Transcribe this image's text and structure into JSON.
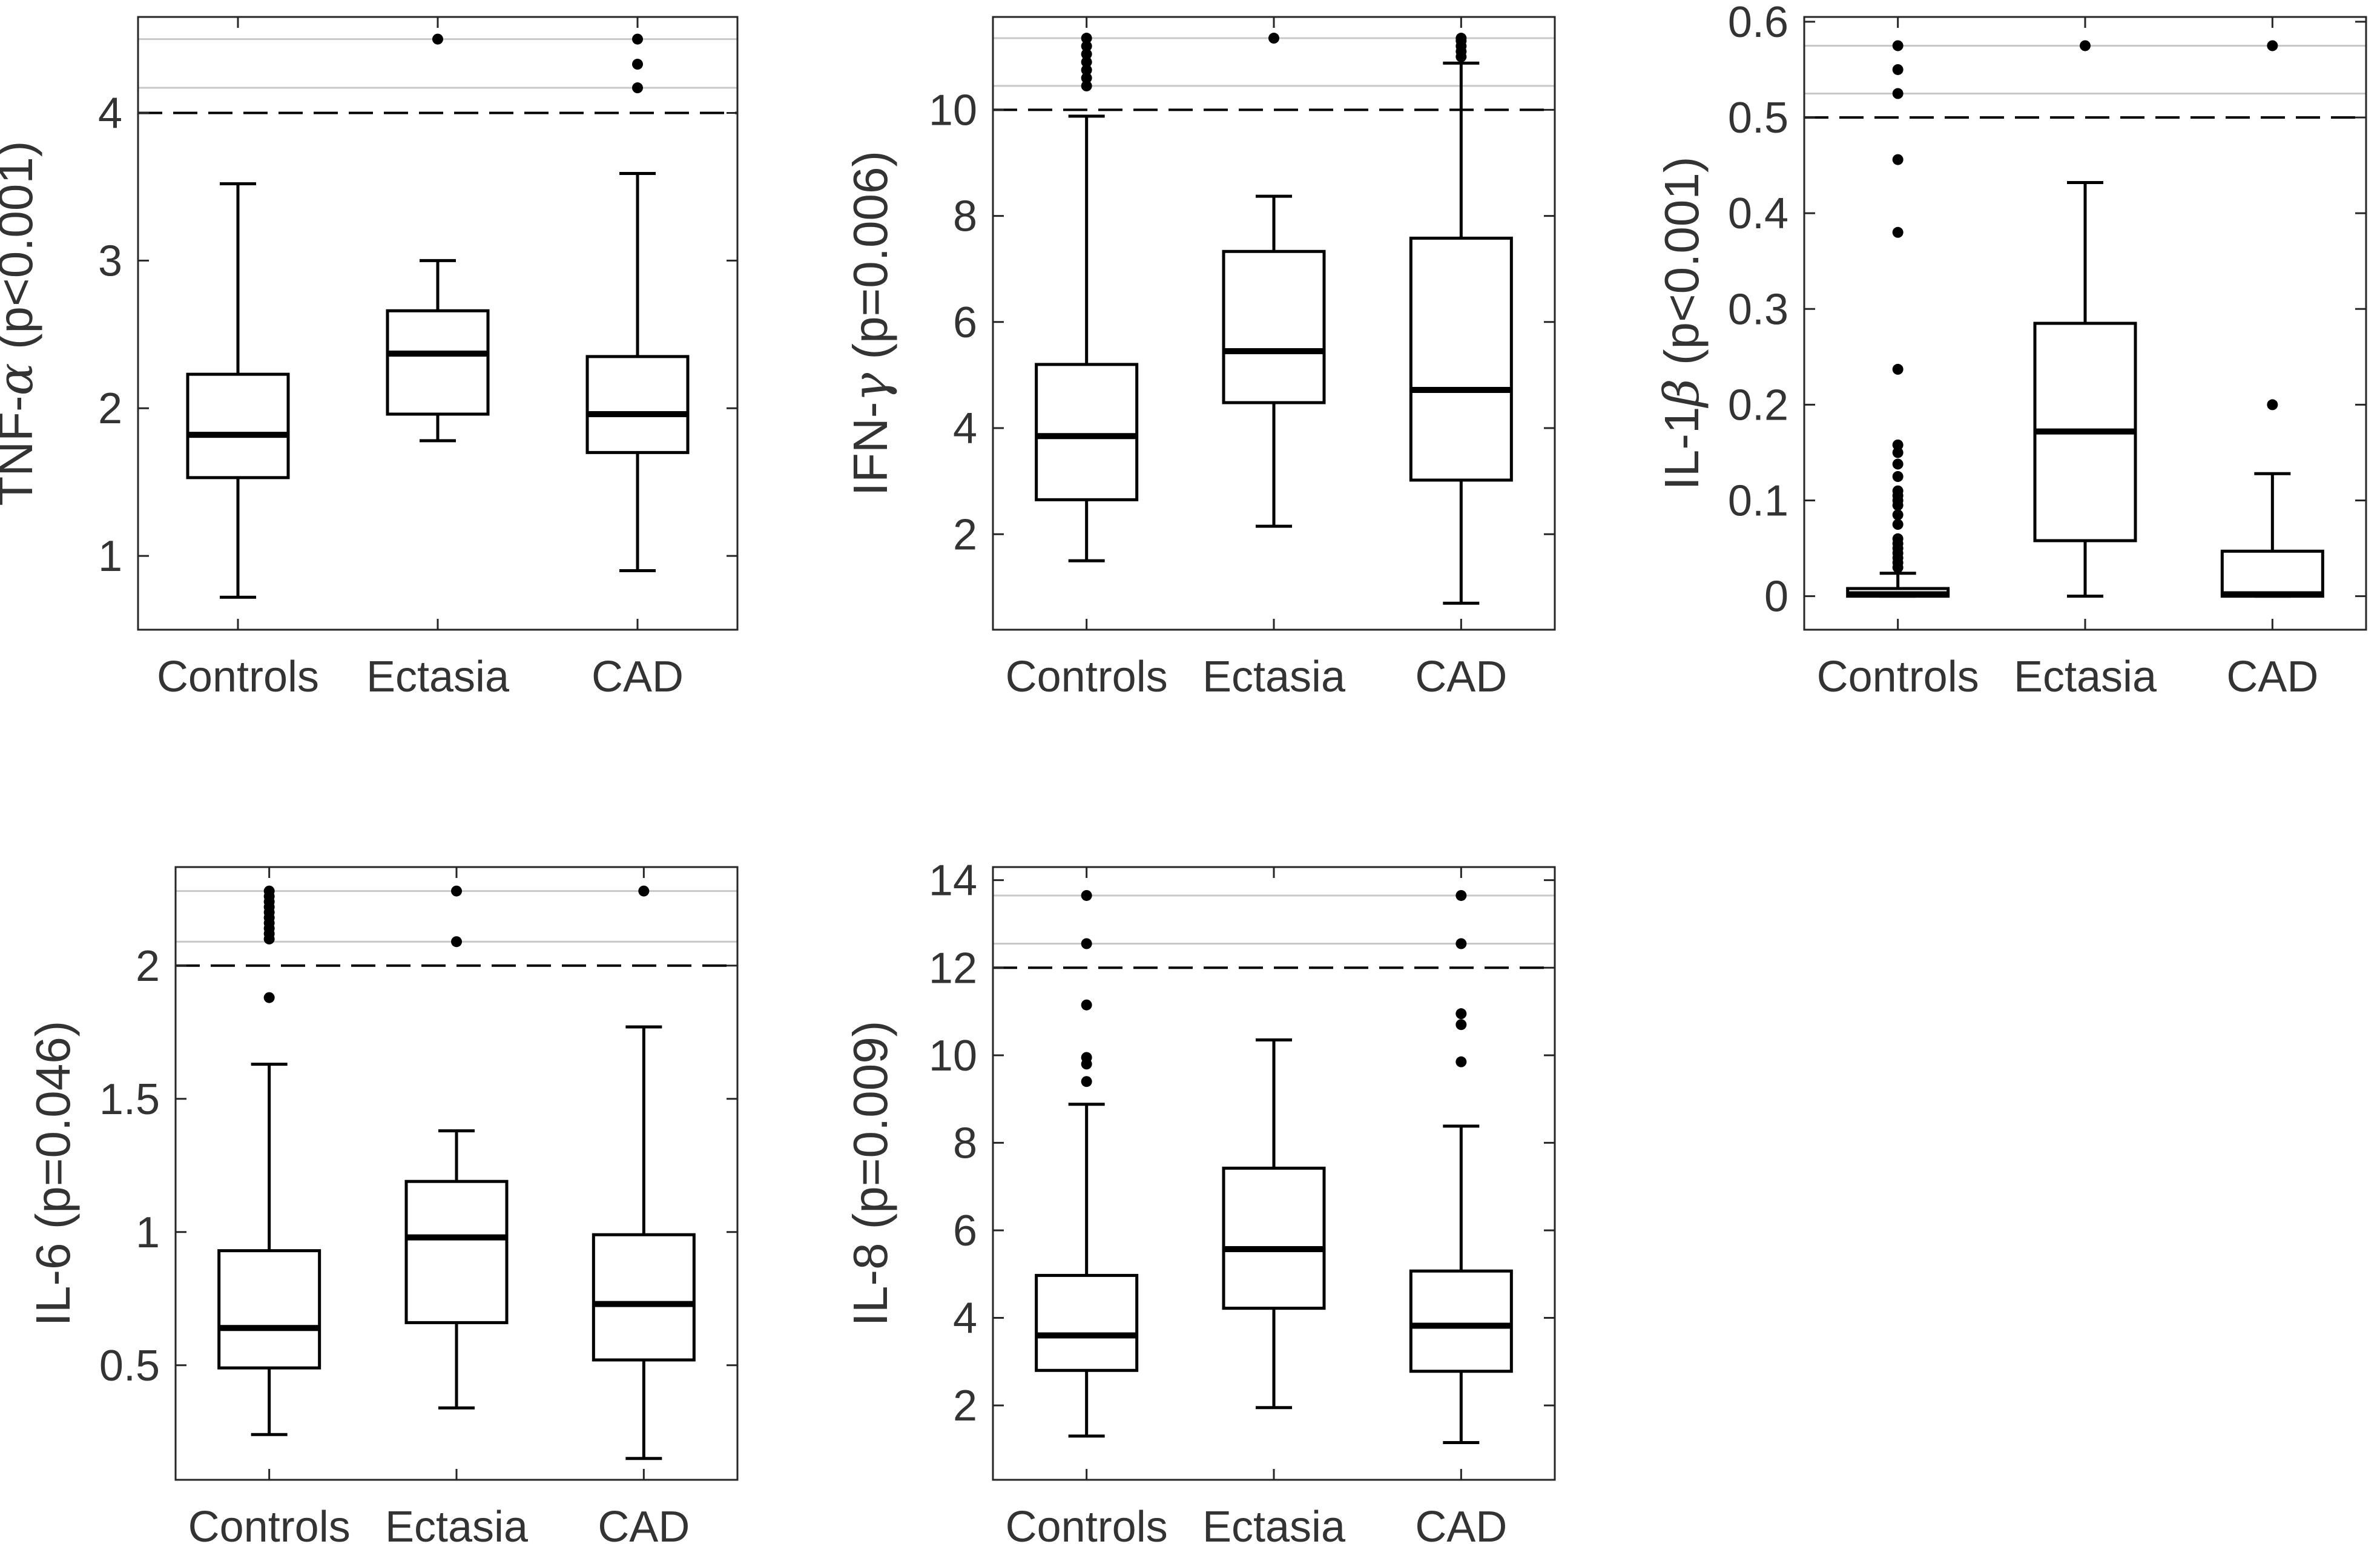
{
  "figure": {
    "description_free": true
  },
  "chart_data": [
    {
      "type": "box",
      "ylabel": "TNF-α (p<0.001)",
      "ylabel_main": "TNF-",
      "ylabel_greek": "α",
      "ylabel_rest": " (p<0.001)",
      "categories": [
        "Controls",
        "Ectasia",
        "CAD"
      ],
      "ylim": [
        0.5,
        4.65
      ],
      "yticks": [
        1,
        2,
        3,
        4
      ],
      "ytick_labels": [
        "1",
        "2",
        "3",
        "4"
      ],
      "dashed_cutoff": 4.0,
      "grey_lines": [
        4.17,
        4.5
      ],
      "boxes": [
        {
          "category": "Controls",
          "whisker_low": 0.72,
          "q1": 1.53,
          "median": 1.82,
          "q3": 2.23,
          "whisker_high": 3.52,
          "outliers": []
        },
        {
          "category": "Ectasia",
          "whisker_low": 1.78,
          "q1": 1.96,
          "median": 2.37,
          "q3": 2.66,
          "whisker_high": 3.0,
          "outliers": [
            4.5
          ]
        },
        {
          "category": "CAD",
          "whisker_low": 0.9,
          "q1": 1.7,
          "median": 1.96,
          "q3": 2.35,
          "whisker_high": 3.59,
          "outliers": [
            4.17,
            4.33,
            4.5
          ]
        }
      ]
    },
    {
      "type": "box",
      "ylabel": "IFN-γ (p=0.006)",
      "ylabel_main": "IFN-",
      "ylabel_greek": "γ",
      "ylabel_rest": " (p=0.006)",
      "categories": [
        "Controls",
        "Ectasia",
        "CAD"
      ],
      "ylim": [
        0.2,
        11.75
      ],
      "yticks": [
        2,
        4,
        6,
        8,
        10
      ],
      "ytick_labels": [
        "2",
        "4",
        "6",
        "8",
        "10"
      ],
      "dashed_cutoff": 10.0,
      "grey_lines": [
        10.45,
        11.35
      ],
      "boxes": [
        {
          "category": "Controls",
          "whisker_low": 1.5,
          "q1": 2.65,
          "median": 3.85,
          "q3": 5.2,
          "whisker_high": 9.88,
          "outliers": [
            10.45,
            10.6,
            10.75,
            10.9,
            11.05,
            11.2,
            11.35
          ]
        },
        {
          "category": "Ectasia",
          "whisker_low": 2.15,
          "q1": 4.48,
          "median": 5.45,
          "q3": 7.33,
          "whisker_high": 8.37,
          "outliers": [
            11.35
          ]
        },
        {
          "category": "CAD",
          "whisker_low": 0.7,
          "q1": 3.02,
          "median": 4.72,
          "q3": 7.58,
          "whisker_high": 10.88,
          "outliers": [
            11.0,
            11.1,
            11.2,
            11.3,
            11.35
          ]
        }
      ]
    },
    {
      "type": "box",
      "ylabel": "IL-1β (p<0.001)",
      "ylabel_main": "IL-1",
      "ylabel_greek": "β",
      "ylabel_rest": " (p<0.001)",
      "categories": [
        "Controls",
        "Ectasia",
        "CAD"
      ],
      "ylim": [
        -0.035,
        0.605
      ],
      "yticks": [
        0,
        0.1,
        0.2,
        0.3,
        0.4,
        0.5,
        0.6
      ],
      "ytick_labels": [
        "0",
        "0.1",
        "0.2",
        "0.3",
        "0.4",
        "0.5",
        "0.6"
      ],
      "dashed_cutoff": 0.5,
      "grey_lines": [
        0.525,
        0.575
      ],
      "boxes": [
        {
          "category": "Controls",
          "whisker_low": 0.0,
          "q1": 0.0,
          "median": 0.002,
          "q3": 0.008,
          "whisker_high": 0.024,
          "outliers": [
            0.03,
            0.035,
            0.04,
            0.045,
            0.05,
            0.055,
            0.06,
            0.075,
            0.085,
            0.095,
            0.1,
            0.105,
            0.11,
            0.125,
            0.138,
            0.15,
            0.158,
            0.237,
            0.38,
            0.456,
            0.525,
            0.55,
            0.575
          ]
        },
        {
          "category": "Ectasia",
          "whisker_low": 0.0,
          "q1": 0.058,
          "median": 0.172,
          "q3": 0.285,
          "whisker_high": 0.432,
          "outliers": [
            0.575
          ]
        },
        {
          "category": "CAD",
          "whisker_low": 0.0,
          "q1": 0.0,
          "median": 0.002,
          "q3": 0.047,
          "whisker_high": 0.128,
          "outliers": [
            0.2,
            0.575
          ]
        }
      ]
    },
    {
      "type": "box",
      "ylabel": "IL-6 (p=0.046)",
      "ylabel_main": "IL-6 (p=0.046)",
      "ylabel_greek": "",
      "ylabel_rest": "",
      "categories": [
        "Controls",
        "Ectasia",
        "CAD"
      ],
      "ylim": [
        0.07,
        2.37
      ],
      "yticks": [
        0.5,
        1,
        1.5,
        2
      ],
      "ytick_labels": [
        "0.5",
        "1",
        "1.5",
        "2"
      ],
      "dashed_cutoff": 2.0,
      "grey_lines": [
        2.09,
        2.28
      ],
      "boxes": [
        {
          "category": "Controls",
          "whisker_low": 0.24,
          "q1": 0.49,
          "median": 0.64,
          "q3": 0.93,
          "whisker_high": 1.63,
          "outliers": [
            1.88,
            2.1,
            2.12,
            2.14,
            2.16,
            2.18,
            2.2,
            2.22,
            2.24,
            2.26,
            2.28
          ]
        },
        {
          "category": "Ectasia",
          "whisker_low": 0.34,
          "q1": 0.66,
          "median": 0.98,
          "q3": 1.19,
          "whisker_high": 1.38,
          "outliers": [
            2.09,
            2.28
          ]
        },
        {
          "category": "CAD",
          "whisker_low": 0.15,
          "q1": 0.52,
          "median": 0.73,
          "q3": 0.99,
          "whisker_high": 1.77,
          "outliers": [
            2.28
          ]
        }
      ]
    },
    {
      "type": "box",
      "ylabel": "IL-8 (p=0.009)",
      "ylabel_main": "IL-8 (p=0.009)",
      "ylabel_greek": "",
      "ylabel_rest": "",
      "categories": [
        "Controls",
        "Ectasia",
        "CAD"
      ],
      "ylim": [
        0.3,
        14.3
      ],
      "yticks": [
        2,
        4,
        6,
        8,
        10,
        12,
        14
      ],
      "ytick_labels": [
        "2",
        "4",
        "6",
        "8",
        "10",
        "12",
        "14"
      ],
      "dashed_cutoff": 12.0,
      "grey_lines": [
        12.55,
        13.65
      ],
      "boxes": [
        {
          "category": "Controls",
          "whisker_low": 1.3,
          "q1": 2.8,
          "median": 3.6,
          "q3": 4.97,
          "whisker_high": 8.88,
          "outliers": [
            9.4,
            9.8,
            9.95,
            11.15,
            12.55,
            13.65
          ]
        },
        {
          "category": "Ectasia",
          "whisker_low": 1.95,
          "q1": 4.22,
          "median": 5.57,
          "q3": 7.42,
          "whisker_high": 10.35,
          "outliers": []
        },
        {
          "category": "CAD",
          "whisker_low": 1.15,
          "q1": 2.78,
          "median": 3.82,
          "q3": 5.07,
          "whisker_high": 8.38,
          "outliers": [
            9.85,
            10.7,
            10.95,
            12.55,
            13.65
          ]
        }
      ]
    }
  ]
}
